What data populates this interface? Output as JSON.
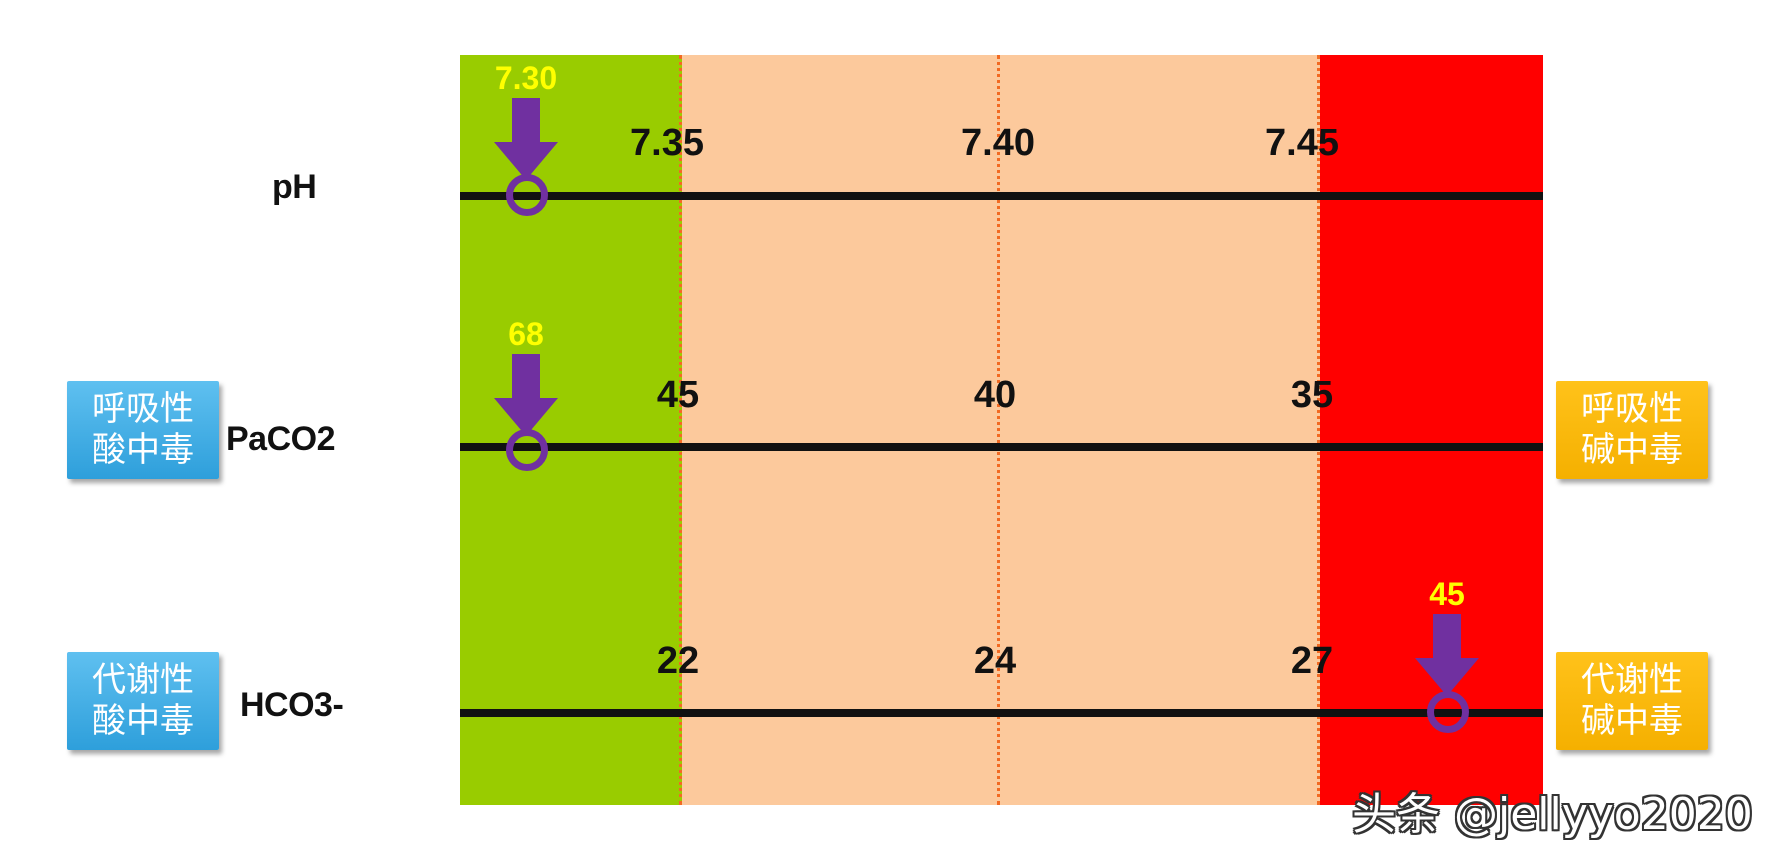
{
  "rows": [
    {
      "label": "pH",
      "ticks": [
        "7.35",
        "7.40",
        "7.45"
      ],
      "marker_value": "7.30",
      "left_badge": null,
      "right_badge": null
    },
    {
      "label": "PaCO2",
      "ticks": [
        "45",
        "40",
        "35"
      ],
      "marker_value": "68",
      "left_badge": {
        "line1": "呼吸性",
        "line2": "酸中毒"
      },
      "right_badge": {
        "line1": "呼吸性",
        "line2": "碱中毒"
      }
    },
    {
      "label": "HCO3-",
      "ticks": [
        "22",
        "24",
        "27"
      ],
      "marker_value": "45",
      "left_badge": {
        "line1": "代谢性",
        "line2": "酸中毒"
      },
      "right_badge": {
        "line1": "代谢性",
        "line2": "碱中毒"
      }
    }
  ],
  "watermark": "头条 @jellyyo2020",
  "colors": {
    "acid_zone": "#99cc00",
    "normal_zone": "#fcc99c",
    "alkaline_zone": "#ff0000",
    "marker": "#7030a0",
    "marker_value": "#ffff00",
    "respiratory_acidosis_badge": "#3aaae6",
    "respiratory_alkalosis_badge": "#ffc000"
  }
}
